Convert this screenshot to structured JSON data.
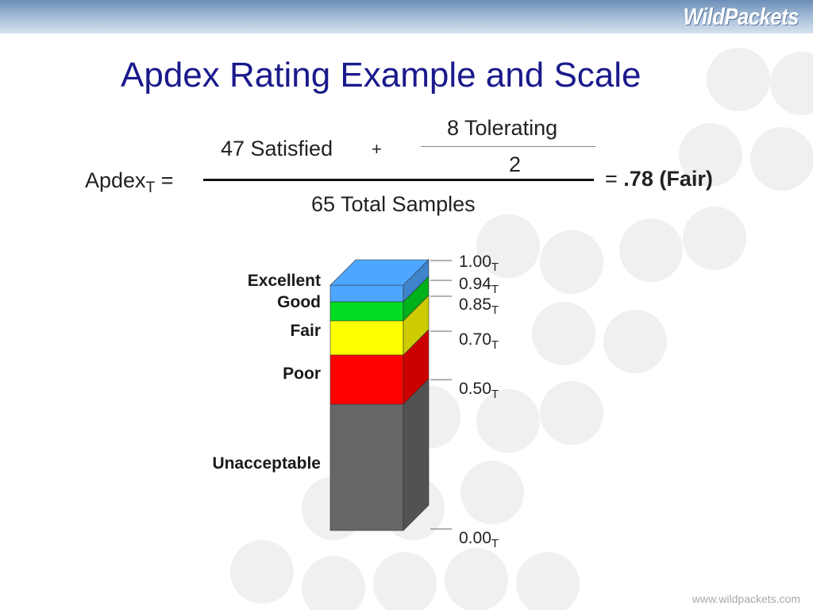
{
  "brand": {
    "logo": "WildPackets",
    "url": "www.wildpackets.com"
  },
  "title": "Apdex Rating Example and Scale",
  "formula": {
    "lhs": "Apdex",
    "lhs_sub": "T",
    "lhs_equals": "=",
    "satisfied": "47 Satisfied",
    "plus": "+",
    "tolerating": "8 Tolerating",
    "divisor": "2",
    "denominator": "65 Total Samples",
    "equals": "=",
    "result": ".78 (Fair)"
  },
  "scale": {
    "subscript": "T",
    "levels": [
      {
        "name": "Excellent",
        "from": 0.94,
        "to": 1.0,
        "color": "#4da6ff"
      },
      {
        "name": "Good",
        "from": 0.85,
        "to": 0.94,
        "color": "#00dd22"
      },
      {
        "name": "Fair",
        "from": 0.7,
        "to": 0.85,
        "color": "#ffff00"
      },
      {
        "name": "Poor",
        "from": 0.5,
        "to": 0.7,
        "color": "#ff0000"
      },
      {
        "name": "Unacceptable",
        "from": 0.0,
        "to": 0.5,
        "color": "#666666"
      }
    ],
    "ticks": [
      "1.00",
      "0.94",
      "0.85",
      "0.70",
      "0.50",
      "0.00"
    ]
  }
}
